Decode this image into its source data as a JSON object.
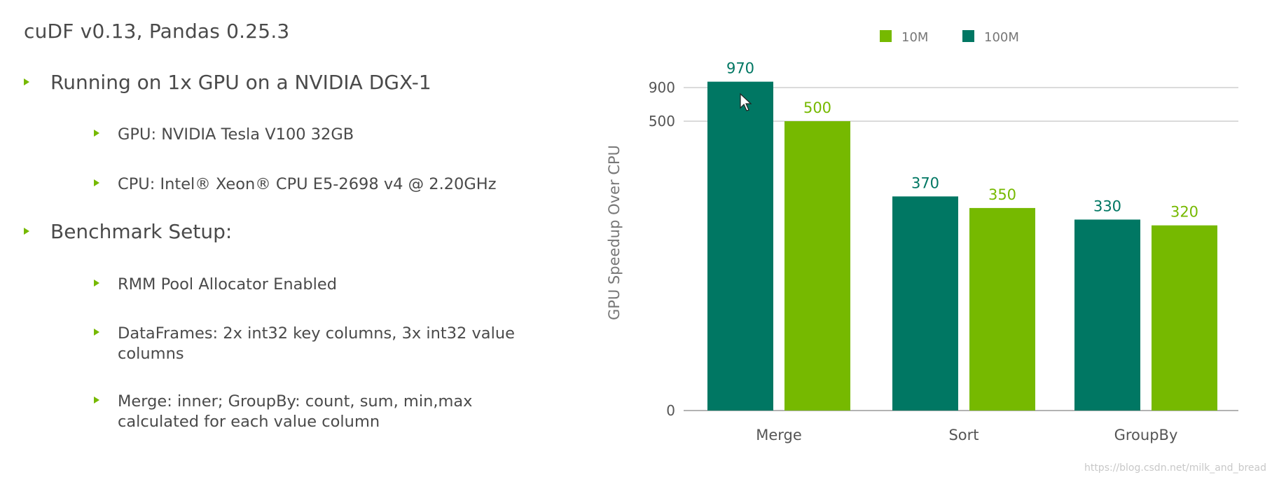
{
  "title": "cuDF v0.13, Pandas 0.25.3",
  "bullets": [
    {
      "level": 1,
      "text": "Running on 1x GPU on a NVIDIA DGX-1"
    },
    {
      "level": 2,
      "text": "GPU: NVIDIA Tesla V100 32GB"
    },
    {
      "level": 2,
      "text": "CPU: Intel® Xeon® CPU E5-2698 v4 @ 2.20GHz"
    },
    {
      "level": 1,
      "text": "Benchmark Setup:"
    },
    {
      "level": 2,
      "text": "RMM Pool Allocator Enabled"
    },
    {
      "level": 2,
      "text": "DataFrames: 2x int32 key columns, 3x int32 value columns"
    },
    {
      "level": 2,
      "text": "Merge: inner; GroupBy: count, sum, min,max calculated for each value column"
    }
  ],
  "colors": {
    "green": "#76b900",
    "teal": "#007763",
    "triangle": "#76b900"
  },
  "chart_data": {
    "type": "bar",
    "ylabel": "GPU Speedup Over CPU",
    "xlabel": "",
    "categories": [
      "Merge",
      "Sort",
      "GroupBy"
    ],
    "series": [
      {
        "name": "100M",
        "color": "#007763",
        "values": [
          970,
          370,
          330
        ]
      },
      {
        "name": "10M",
        "color": "#76b900",
        "values": [
          500,
          350,
          320
        ]
      }
    ],
    "yticks": [
      "0",
      "500",
      "900"
    ],
    "legend": [
      "10M",
      "100M"
    ],
    "legend_position": "top",
    "grid": true,
    "note": "axis is non-linear (broken scale)"
  },
  "watermark": "https://blog.csdn.net/milk_and_bread"
}
